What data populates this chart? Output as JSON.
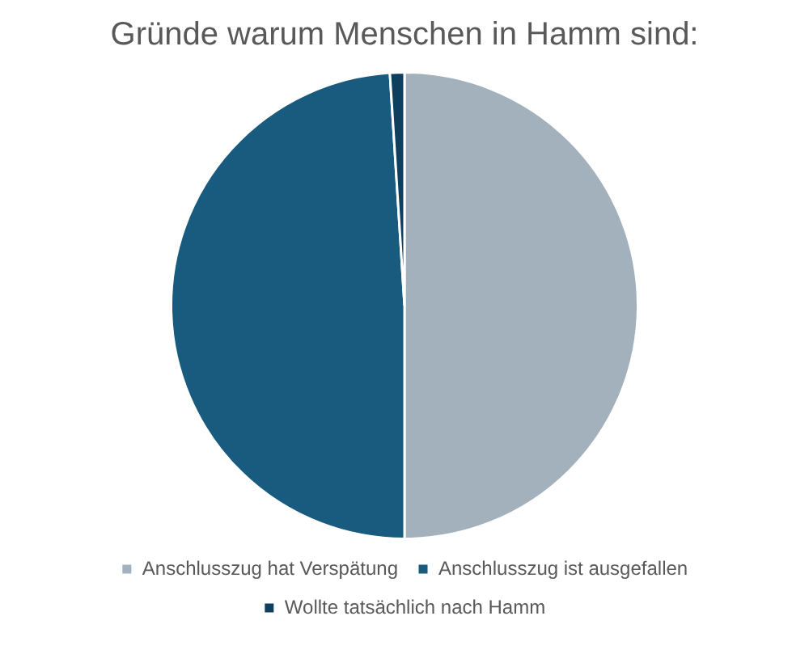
{
  "chart_data": {
    "type": "pie",
    "title": "Gründe warum Menschen in Hamm sind:",
    "categories": [
      "Anschlusszug hat Verspätung",
      "Anschlusszug ist ausgefallen",
      "Wollte tatsächlich nach Hamm"
    ],
    "values": [
      50,
      49,
      1
    ],
    "colors": [
      "#a3b1bc",
      "#185b7e",
      "#0f3f5c"
    ],
    "legend": "bottom"
  }
}
